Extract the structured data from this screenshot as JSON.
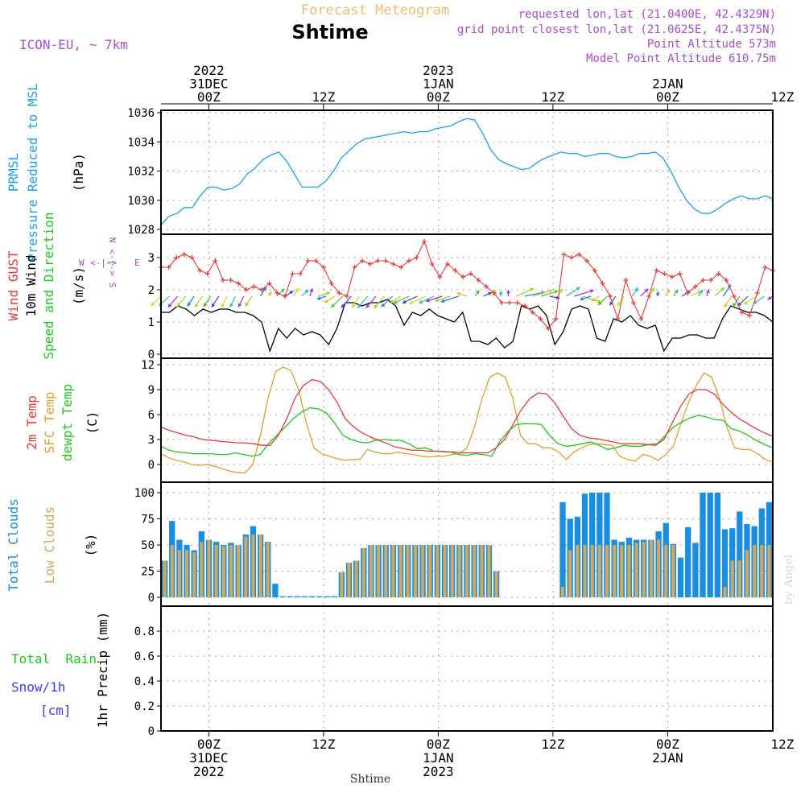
{
  "header": {
    "top_title": "Forecast Meteogram",
    "location": "Shtime",
    "model": "ICON-EU, ~ 7km",
    "requested": "requested lon,lat (21.0400E, 42.4329N)",
    "gridpoint": "grid point closest lon,lat (21.0625E, 42.4375N)",
    "point_alt": "Point Altitude 573m",
    "model_alt": "Model Point Altitude 610.75m",
    "credit": "by Angel",
    "footer": "Shtime"
  },
  "colors": {
    "pressure": "#1aa3e8",
    "gust": "#e83a3a",
    "wind": "#000000",
    "temp2m": "#e83a3a",
    "sfc": "#e0a030",
    "dewpt": "#1ec81e",
    "total_clouds": "#1a8fe0",
    "low_clouds": "#d4a85a",
    "rain": "#1ec81e",
    "snow": "#3a3aff",
    "header_purple": "#a84ec8",
    "header_orange": "#e8c070"
  },
  "time_axis": {
    "top_ticks": [
      {
        "lines": [
          "2022",
          "31DEC",
          "00Z"
        ]
      },
      {
        "lines": [
          "12Z"
        ]
      },
      {
        "lines": [
          "2023",
          "1JAN",
          "00Z"
        ]
      },
      {
        "lines": [
          "12Z"
        ]
      },
      {
        "lines": [
          "2JAN",
          "00Z"
        ]
      },
      {
        "lines": [
          "12Z"
        ]
      }
    ],
    "bottom_ticks": [
      {
        "lines": [
          "00Z",
          "31DEC",
          "2022"
        ]
      },
      {
        "lines": [
          "12Z"
        ]
      },
      {
        "lines": [
          "00Z",
          "1JAN",
          "2023"
        ]
      },
      {
        "lines": [
          "12Z"
        ]
      },
      {
        "lines": [
          "00Z",
          "2JAN"
        ]
      },
      {
        "lines": [
          "12Z"
        ]
      }
    ],
    "start_hour": -5,
    "end_hour": 59,
    "hours_between_points": 1
  },
  "panels": {
    "pressure": {
      "label_lines": [
        {
          "text": "PRMSL",
          "color": "#1aa3e8"
        },
        {
          "text": "Pressure Reduced to MSL",
          "color": "#1aa3e8"
        },
        {
          "text": "(hPa)",
          "color": "#000000"
        }
      ]
    },
    "wind": {
      "label_lines": [
        {
          "text": "Wind GUST",
          "color": "#e83a3a"
        },
        {
          "text": "10m Wind",
          "color": "#000000"
        },
        {
          "text": "Speed and Direction",
          "color": "#1ec81e"
        },
        {
          "text": "(m/s)",
          "color": "#000000"
        }
      ],
      "compass": {
        "n": "N",
        "s": "S",
        "e": "E",
        "w": "W",
        "arrows": "<-|->"
      }
    },
    "temp": {
      "label_lines": [
        {
          "text": "2m Temp",
          "color": "#e83a3a"
        },
        {
          "text": "SFC Temp",
          "color": "#e0a030"
        },
        {
          "text": "dewpt Temp",
          "color": "#1ec81e"
        },
        {
          "text": "(C)",
          "color": "#000000"
        }
      ]
    },
    "clouds": {
      "label_lines": [
        {
          "text": "Total Clouds",
          "color": "#1a8fe0"
        },
        {
          "text": "Low Clouds",
          "color": "#d4a85a"
        },
        {
          "text": "(%)",
          "color": "#000000"
        }
      ]
    },
    "precip": {
      "label_rain": "Total  Rain",
      "label_snow": "Snow/1h",
      "label_cm": "[cm]",
      "ylabel": "1hr Precip (mm)"
    }
  },
  "chart_data": [
    {
      "type": "line",
      "title": "PRMSL Pressure Reduced to MSL",
      "ylabel": "(hPa)",
      "ylim": [
        1028,
        1036
      ],
      "yticks": [
        1028,
        1030,
        1032,
        1034,
        1036
      ],
      "grid": true,
      "x_hours_start": -5,
      "series": [
        {
          "name": "PRMSL",
          "values": [
            1028.3,
            1028.9,
            1029.1,
            1029.5,
            1029.5,
            1030.3,
            1030.9,
            1030.9,
            1030.7,
            1030.8,
            1031.1,
            1031.8,
            1032.2,
            1032.8,
            1033.1,
            1033.3,
            1032.7,
            1031.8,
            1030.9,
            1030.9,
            1030.9,
            1031.3,
            1032.0,
            1032.9,
            1033.4,
            1033.9,
            1034.2,
            1034.3,
            1034.4,
            1034.5,
            1034.6,
            1034.7,
            1034.6,
            1034.7,
            1034.7,
            1034.9,
            1035.0,
            1035.1,
            1035.4,
            1035.6,
            1035.5,
            1034.6,
            1033.5,
            1032.8,
            1032.5,
            1032.3,
            1032.1,
            1032.2,
            1032.6,
            1032.9,
            1033.1,
            1033.3,
            1033.2,
            1033.2,
            1033.0,
            1033.1,
            1033.2,
            1033.2,
            1033.0,
            1032.9,
            1033.0,
            1033.2,
            1033.2,
            1033.3,
            1032.9,
            1032.0,
            1030.9,
            1030.0,
            1029.4,
            1029.1,
            1029.1,
            1029.4,
            1029.8,
            1030.1,
            1030.3,
            1030.1,
            1030.1,
            1030.3,
            1030.1
          ]
        }
      ]
    },
    {
      "type": "line",
      "title": "Wind GUST / 10m Wind Speed and Direction",
      "ylabel": "(m/s)",
      "ylim": [
        0,
        3.6
      ],
      "yticks": [
        0,
        1,
        2,
        3
      ],
      "grid": true,
      "x_hours_start": -5,
      "series": [
        {
          "name": "Wind GUST",
          "values": [
            2.7,
            2.7,
            3.0,
            3.1,
            3.0,
            2.6,
            2.5,
            2.9,
            2.3,
            2.3,
            2.2,
            2.0,
            2.1,
            2.0,
            2.2,
            1.9,
            1.8,
            2.5,
            2.5,
            2.9,
            2.9,
            2.7,
            2.2,
            1.9,
            1.8,
            2.7,
            2.9,
            2.8,
            2.9,
            2.9,
            2.8,
            2.7,
            2.9,
            3.0,
            3.5,
            2.8,
            2.4,
            2.8,
            2.6,
            2.4,
            2.5,
            2.3,
            2.1,
            1.9,
            1.6,
            1.6,
            1.6,
            1.5,
            1.3,
            1.1,
            0.8,
            1.1,
            3.1,
            3.0,
            3.1,
            2.9,
            2.6,
            2.2,
            1.8,
            1.1,
            2.3,
            1.6,
            1.1,
            1.8,
            2.6,
            2.5,
            2.4,
            2.5,
            1.9,
            2.1,
            2.3,
            2.3,
            2.5,
            2.3,
            1.8,
            1.3,
            1.2,
            1.9,
            2.7,
            2.6
          ]
        },
        {
          "name": "10m Wind",
          "values": [
            1.3,
            1.3,
            1.5,
            1.4,
            1.2,
            1.4,
            1.3,
            1.4,
            1.4,
            1.3,
            1.3,
            1.2,
            1.0,
            0.1,
            0.8,
            0.5,
            0.8,
            0.6,
            0.7,
            0.6,
            0.3,
            0.8,
            1.6,
            1.6,
            1.5,
            1.6,
            1.6,
            1.7,
            1.5,
            0.9,
            1.3,
            1.2,
            1.4,
            1.2,
            1.1,
            1.0,
            1.3,
            0.4,
            0.4,
            0.3,
            0.5,
            0.2,
            0.4,
            1.5,
            1.4,
            1.5,
            1.2,
            0.3,
            0.7,
            1.4,
            1.5,
            1.4,
            0.5,
            0.4,
            1.1,
            1.0,
            1.2,
            0.9,
            0.8,
            0.9,
            0.1,
            0.5,
            0.5,
            0.6,
            0.6,
            0.5,
            0.5,
            1.1,
            1.5,
            1.4,
            1.3,
            1.3,
            1.2,
            1.0
          ]
        },
        {
          "name": "Wind direction (deg)",
          "values": [
            30,
            30,
            25,
            25,
            20,
            20,
            20,
            20,
            15,
            15,
            15,
            20,
            200,
            200,
            210,
            220,
            200,
            210,
            190,
            240,
            60,
            40,
            30,
            25,
            20,
            25,
            25,
            25,
            30,
            40,
            50,
            50,
            50,
            50,
            60,
            60,
            60,
            120,
            200,
            230,
            200,
            190,
            180,
            230,
            250,
            240,
            240,
            290,
            200,
            220,
            240,
            300,
            60,
            40,
            30,
            20,
            20,
            200,
            210,
            200,
            190,
            200,
            200,
            220,
            230,
            200,
            190,
            210,
            200,
            20,
            20,
            30,
            40,
            40,
            40
          ]
        }
      ]
    },
    {
      "type": "line",
      "title": "2m Temp / SFC Temp / dewpt Temp",
      "ylabel": "(C)",
      "ylim": [
        -1,
        12
      ],
      "yticks": [
        0,
        3,
        6,
        9,
        12
      ],
      "grid": true,
      "x_hours_start": -5,
      "series": [
        {
          "name": "2m Temp",
          "values": [
            4.5,
            4.1,
            3.8,
            3.5,
            3.3,
            3.0,
            2.9,
            2.8,
            2.7,
            2.6,
            2.6,
            2.5,
            2.3,
            2.3,
            3.5,
            5.5,
            8.0,
            9.5,
            10.2,
            10.0,
            9.0,
            7.5,
            5.5,
            4.5,
            3.8,
            3.3,
            2.9,
            2.5,
            2.1,
            1.9,
            1.7,
            1.7,
            1.6,
            1.6,
            1.5,
            1.5,
            1.4,
            1.4,
            1.4,
            1.4,
            2.0,
            3.0,
            4.8,
            6.6,
            7.9,
            8.6,
            8.5,
            7.4,
            5.8,
            4.3,
            3.5,
            3.2,
            3.1,
            2.9,
            2.7,
            2.5,
            2.5,
            2.5,
            2.4,
            2.3,
            3.0,
            5.0,
            7.0,
            8.5,
            9.0,
            9.0,
            8.5,
            7.3,
            6.3,
            5.5,
            4.9,
            4.3,
            3.8,
            3.4
          ]
        },
        {
          "name": "SFC Temp",
          "values": [
            1.3,
            0.8,
            0.5,
            0.3,
            0.0,
            -0.1,
            0.0,
            -0.2,
            -0.5,
            -0.8,
            -1.0,
            -1.0,
            0.0,
            3.5,
            8.0,
            11.2,
            11.7,
            11.3,
            9.0,
            5.0,
            2.0,
            1.3,
            1.0,
            0.7,
            0.5,
            0.6,
            0.6,
            1.8,
            1.5,
            1.3,
            1.3,
            1.5,
            1.3,
            1.2,
            1.0,
            0.9,
            1.0,
            1.0,
            1.2,
            1.3,
            2.0,
            4.5,
            8.0,
            10.5,
            11.0,
            10.5,
            8.0,
            3.5,
            2.5,
            2.5,
            2.0,
            2.0,
            1.5,
            0.6,
            1.5,
            2.0,
            2.4,
            2.5,
            2.4,
            2.3,
            1.0,
            0.6,
            0.4,
            1.2,
            1.0,
            0.5,
            1.2,
            2.2,
            5.0,
            7.5,
            9.5,
            11.0,
            10.5,
            8.0,
            4.5,
            2.0,
            1.8,
            1.8,
            1.3,
            0.6,
            0.3
          ]
        },
        {
          "name": "dewpt Temp",
          "values": [
            2.2,
            1.7,
            1.5,
            1.4,
            1.3,
            1.3,
            1.3,
            1.2,
            1.2,
            1.4,
            1.2,
            1.0,
            1.2,
            2.5,
            3.5,
            4.5,
            5.5,
            6.3,
            6.8,
            6.7,
            6.2,
            5.0,
            3.5,
            3.0,
            2.7,
            2.6,
            2.9,
            3.0,
            2.9,
            2.9,
            2.5,
            1.9,
            2.0,
            1.6,
            1.6,
            1.5,
            1.2,
            1.1,
            1.3,
            1.2,
            1.0,
            2.8,
            4.0,
            4.8,
            4.9,
            4.9,
            4.8,
            3.5,
            2.5,
            2.2,
            2.3,
            2.5,
            2.7,
            2.3,
            1.8,
            2.0,
            2.3,
            2.2,
            2.2,
            2.4,
            2.5,
            3.5,
            4.5,
            5.1,
            5.6,
            5.9,
            5.7,
            5.4,
            5.3,
            4.3,
            4.0,
            3.5,
            2.9,
            2.4,
            2.0
          ]
        }
      ]
    },
    {
      "type": "bar",
      "title": "Total Clouds / Low Clouds",
      "ylabel": "(%)",
      "ylim": [
        0,
        100
      ],
      "yticks": [
        0,
        25,
        50,
        75,
        100
      ],
      "grid": true,
      "x_hours_start": -5,
      "series": [
        {
          "name": "Total Clouds",
          "values": [
            35,
            73,
            55,
            50,
            45,
            63,
            55,
            53,
            50,
            52,
            50,
            60,
            68,
            60,
            53,
            13,
            1,
            1,
            1,
            1,
            1,
            1,
            1,
            1,
            24,
            33,
            35,
            47,
            50,
            50,
            50,
            50,
            50,
            50,
            50,
            50,
            50,
            50,
            50,
            50,
            50,
            50,
            50,
            50,
            50,
            25,
            0,
            0,
            0,
            0,
            0,
            0,
            0,
            0,
            91,
            75,
            77,
            99,
            100,
            100,
            100,
            55,
            53,
            57,
            55,
            55,
            55,
            63,
            71,
            51,
            38,
            67,
            52,
            100,
            100,
            100,
            65,
            66,
            82,
            70,
            68,
            85,
            91
          ]
        },
        {
          "name": "Low Clouds",
          "values": [
            35,
            50,
            45,
            45,
            43,
            53,
            55,
            50,
            49,
            50,
            50,
            58,
            60,
            60,
            53,
            0,
            0,
            0,
            0,
            0,
            0,
            0,
            0,
            0,
            24,
            33,
            35,
            47,
            50,
            50,
            50,
            50,
            50,
            50,
            50,
            50,
            50,
            50,
            50,
            50,
            50,
            50,
            50,
            50,
            50,
            25,
            0,
            0,
            0,
            0,
            0,
            0,
            0,
            0,
            10,
            45,
            50,
            50,
            50,
            50,
            50,
            50,
            50,
            50,
            52,
            53,
            55,
            55,
            50,
            50,
            0,
            0,
            0,
            0,
            0,
            0,
            10,
            35,
            35,
            45,
            50,
            50,
            50
          ]
        }
      ]
    },
    {
      "type": "bar",
      "title": "1hr Precip",
      "ylabel": "1hr Precip (mm)",
      "ylim": [
        0,
        1
      ],
      "yticks": [
        0,
        0.2,
        0.4,
        0.6,
        0.8
      ],
      "grid": true,
      "x_hours_start": -5,
      "series": [
        {
          "name": "Total Rain",
          "values": []
        },
        {
          "name": "Snow/1h",
          "values": []
        }
      ]
    }
  ]
}
